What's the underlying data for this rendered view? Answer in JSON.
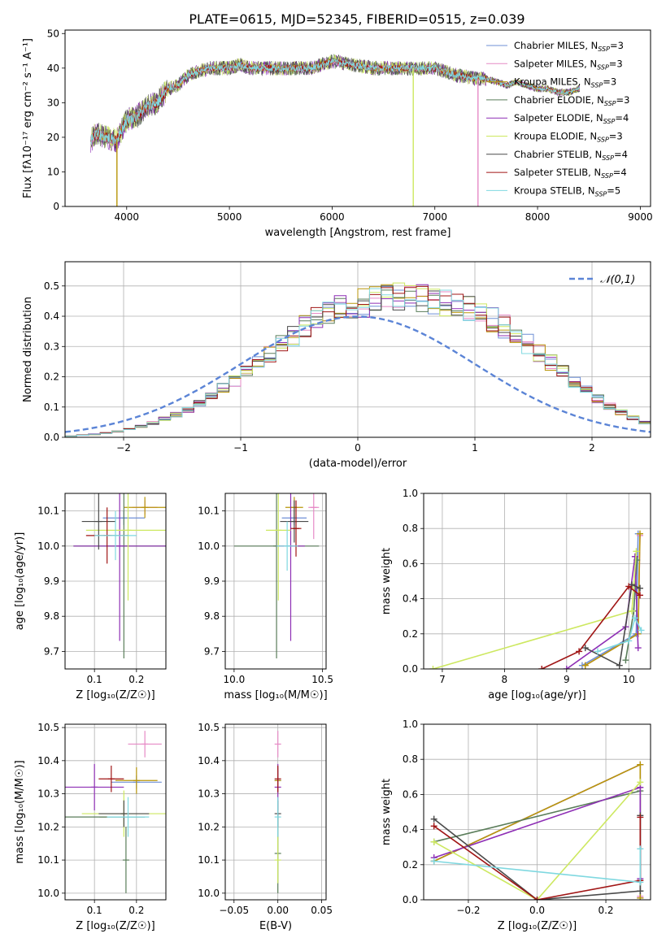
{
  "figure": {
    "title": "PLATE=0615, MJD=52345, FIBERID=0515, z=0.039"
  },
  "chart_data": [
    {
      "id": "spectrum",
      "type": "line",
      "xlabel": "wavelength [Angstrom, rest frame]",
      "ylabel": "Flux [fλ10⁻¹⁷ erg cm⁻² s⁻¹ A⁻¹]",
      "xlim": [
        3400,
        9100
      ],
      "ylim": [
        0,
        51
      ],
      "xticks": [
        4000,
        5000,
        6000,
        7000,
        8000,
        9000
      ],
      "yticks": [
        0,
        10,
        20,
        30,
        40,
        50
      ],
      "grid": false,
      "legend_position": "top-right",
      "continuum": {
        "x": [
          3650,
          3700,
          3800,
          3900,
          4000,
          4100,
          4200,
          4300,
          4400,
          4500,
          4600,
          4700,
          4800,
          4900,
          5000,
          5100,
          5200,
          5400,
          5600,
          5800,
          6000,
          6200,
          6400,
          6600,
          6800,
          7000,
          7200,
          7400,
          7500,
          7600,
          7700,
          7800,
          7900,
          8000,
          8100,
          8200,
          8300,
          8400
        ],
        "y": [
          19,
          21,
          20,
          19,
          25,
          26,
          29,
          30,
          34,
          35,
          38,
          39,
          40,
          40,
          40,
          41,
          40,
          40,
          40,
          40,
          42,
          41,
          40,
          40,
          40,
          40,
          38,
          37,
          37,
          36,
          35,
          36,
          35,
          34,
          34,
          33,
          33,
          34
        ]
      },
      "dips": [
        {
          "x": 3905,
          "y": 0
        },
        {
          "x": 6790,
          "y": 0
        },
        {
          "x": 7420,
          "y": 0
        }
      ],
      "series": [
        {
          "name": "Chabrier MILES, N_SSP=3",
          "color": "#6f8fd6"
        },
        {
          "name": "Salpeter MILES, N_SSP=3",
          "color": "#e68ac6"
        },
        {
          "name": "Kroupa MILES, N_SSP=3",
          "color": "#b8960a"
        },
        {
          "name": "Chabrier ELODIE, N_SSP=3",
          "color": "#5a7d5a"
        },
        {
          "name": "Salpeter ELODIE, N_SSP=4",
          "color": "#8e2fb5"
        },
        {
          "name": "Kroupa ELODIE, N_SSP=3",
          "color": "#cde860"
        },
        {
          "name": "Chabrier STELIB, N_SSP=4",
          "color": "#4a4a4a"
        },
        {
          "name": "Salpeter STELIB, N_SSP=4",
          "color": "#a01515"
        },
        {
          "name": "Kroupa STELIB, N_SSP=5",
          "color": "#7fd8e0"
        }
      ]
    },
    {
      "id": "residuals",
      "type": "step",
      "xlabel": "(data-model)/error",
      "ylabel": "Normed distribution",
      "xlim": [
        -2.5,
        2.5
      ],
      "ylim": [
        0,
        0.58
      ],
      "xticks": [
        -2,
        -1,
        0,
        1,
        2
      ],
      "yticks": [
        0.0,
        0.1,
        0.2,
        0.3,
        0.4,
        0.5
      ],
      "grid": true,
      "legend_position": "top-right",
      "reference": {
        "name": "𝒩(0,1)",
        "color": "#5b84d6",
        "mu": 0,
        "sigma": 1
      },
      "bin_edges_start": -2.5,
      "bin_width": 0.1,
      "histogram_envelope": [
        0.004,
        0.007,
        0.01,
        0.014,
        0.02,
        0.027,
        0.036,
        0.047,
        0.06,
        0.075,
        0.093,
        0.113,
        0.136,
        0.161,
        0.188,
        0.217,
        0.247,
        0.277,
        0.308,
        0.337,
        0.364,
        0.388,
        0.408,
        0.424,
        0.436,
        0.445,
        0.452,
        0.458,
        0.462,
        0.463,
        0.461,
        0.457,
        0.45,
        0.44,
        0.427,
        0.41,
        0.39,
        0.366,
        0.339,
        0.309,
        0.278,
        0.246,
        0.214,
        0.183,
        0.154,
        0.127,
        0.103,
        0.082,
        0.064,
        0.049
      ]
    },
    {
      "id": "age-vs-Z",
      "type": "errorbar",
      "xlabel": "Z [log₁₀(Z/Z☉)]",
      "ylabel": "age  [log₁₀(age/yr)]",
      "xlim": [
        0.03,
        0.27
      ],
      "ylim": [
        9.65,
        10.15
      ],
      "xticks": [
        0.1,
        0.2
      ],
      "yticks": [
        9.7,
        9.8,
        9.9,
        10.0,
        10.1
      ],
      "grid": true,
      "points": [
        {
          "x": 0.17,
          "y": 10.08,
          "xerr": 0.05,
          "yerr": 0.02,
          "c": 0
        },
        {
          "x": 0.22,
          "y": 10.11,
          "xerr": 0.03,
          "yerr": 0.02,
          "c": 1
        },
        {
          "x": 0.22,
          "y": 10.11,
          "xerr": 0.05,
          "yerr": 0.03,
          "c": 2
        },
        {
          "x": 0.17,
          "y": 10.0,
          "xerr": 0.12,
          "yerr": 0.32,
          "c": 3
        },
        {
          "x": 0.16,
          "y": 10.0,
          "xerr": 0.11,
          "yerr": 0.27,
          "c": 4
        },
        {
          "x": 0.18,
          "y": 10.045,
          "xerr": 0.1,
          "yerr": 0.2,
          "c": 5
        },
        {
          "x": 0.11,
          "y": 10.07,
          "xerr": 0.04,
          "yerr": 0.08,
          "c": 6
        },
        {
          "x": 0.13,
          "y": 10.03,
          "xerr": 0.05,
          "yerr": 0.08,
          "c": 7
        },
        {
          "x": 0.15,
          "y": 10.03,
          "xerr": 0.05,
          "yerr": 0.07,
          "c": 8
        }
      ]
    },
    {
      "id": "age-vs-mass",
      "type": "errorbar",
      "xlabel": "mass [log₁₀(M/M☉)]",
      "ylabel": "",
      "xlim": [
        9.95,
        10.52
      ],
      "ylim": [
        9.65,
        10.15
      ],
      "xticks": [
        10.0,
        10.5
      ],
      "yticks": [
        9.7,
        9.8,
        9.9,
        10.0,
        10.1
      ],
      "grid": true,
      "points": [
        {
          "x": 10.34,
          "y": 10.08,
          "xerr": 0.07,
          "yerr": 0.02,
          "c": 0
        },
        {
          "x": 10.45,
          "y": 10.11,
          "xerr": 0.03,
          "yerr": 0.09,
          "c": 1
        },
        {
          "x": 10.34,
          "y": 10.11,
          "xerr": 0.05,
          "yerr": 0.03,
          "c": 2
        },
        {
          "x": 10.24,
          "y": 10.0,
          "xerr": 0.24,
          "yerr": 0.32,
          "c": 3
        },
        {
          "x": 10.32,
          "y": 10.0,
          "xerr": 0.08,
          "yerr": 0.27,
          "c": 4
        },
        {
          "x": 10.25,
          "y": 10.045,
          "xerr": 0.07,
          "yerr": 0.2,
          "c": 5
        },
        {
          "x": 10.34,
          "y": 10.07,
          "xerr": 0.08,
          "yerr": 0.06,
          "c": 6
        },
        {
          "x": 10.35,
          "y": 10.05,
          "xerr": 0.03,
          "yerr": 0.08,
          "c": 7
        },
        {
          "x": 10.3,
          "y": 10.0,
          "xerr": 0.06,
          "yerr": 0.07,
          "c": 8
        }
      ]
    },
    {
      "id": "weight-vs-age",
      "type": "line",
      "xlabel": "age  [log₁₀(age/yr)]",
      "ylabel": "mass weight",
      "xlim": [
        6.7,
        10.35
      ],
      "ylim": [
        0,
        1
      ],
      "xticks": [
        7,
        8,
        9,
        10
      ],
      "yticks": [
        0.0,
        0.2,
        0.4,
        0.6,
        0.8,
        1.0
      ],
      "grid": true,
      "series": [
        {
          "c": 0,
          "x": [
            9.25,
            10.12,
            10.15
          ],
          "y": [
            0.02,
            0.2,
            0.77
          ]
        },
        {
          "c": 1,
          "x": [
            9.3,
            10.15,
            10.18
          ],
          "y": [
            0.02,
            0.2,
            0.76
          ]
        },
        {
          "c": 2,
          "x": [
            9.3,
            10.15,
            10.18
          ],
          "y": [
            0.02,
            0.2,
            0.77
          ]
        },
        {
          "c": 3,
          "x": [
            9.95,
            10.08,
            10.13
          ],
          "y": [
            0.05,
            0.33,
            0.62
          ]
        },
        {
          "c": 4,
          "x": [
            9.0,
            9.95,
            10.1,
            10.15
          ],
          "y": [
            0.0,
            0.24,
            0.64,
            0.12
          ]
        },
        {
          "c": 5,
          "x": [
            6.85,
            10.05,
            10.12
          ],
          "y": [
            0.0,
            0.33,
            0.67
          ]
        },
        {
          "c": 6,
          "x": [
            9.3,
            9.85,
            10.05,
            10.18
          ],
          "y": [
            0.12,
            0.02,
            0.48,
            0.46
          ]
        },
        {
          "c": 7,
          "x": [
            8.6,
            9.2,
            10.0,
            10.18
          ],
          "y": [
            0.0,
            0.1,
            0.47,
            0.42
          ]
        },
        {
          "c": 8,
          "x": [
            9.5,
            10.0,
            10.1,
            10.2
          ],
          "y": [
            0.1,
            0.16,
            0.29,
            0.22
          ]
        }
      ]
    },
    {
      "id": "mass-vs-Z",
      "type": "errorbar",
      "xlabel": "Z [log₁₀(Z/Z☉)]",
      "ylabel": "mass [log₁₀(M/M☉)]",
      "xlim": [
        0.03,
        0.27
      ],
      "ylim": [
        9.98,
        10.51
      ],
      "xticks": [
        0.1,
        0.2
      ],
      "yticks": [
        10.0,
        10.1,
        10.2,
        10.3,
        10.4,
        10.5
      ],
      "grid": true,
      "points": [
        {
          "x": 0.2,
          "y": 10.335,
          "xerr": 0.06,
          "yerr": 0.02,
          "c": 0
        },
        {
          "x": 0.22,
          "y": 10.45,
          "xerr": 0.04,
          "yerr": 0.04,
          "c": 1
        },
        {
          "x": 0.2,
          "y": 10.34,
          "xerr": 0.05,
          "yerr": 0.04,
          "c": 2
        },
        {
          "x": 0.12,
          "y": 10.23,
          "xerr": 0.1,
          "yerr": 0.0,
          "c": 3
        },
        {
          "x": 0.1,
          "y": 10.32,
          "xerr": 0.07,
          "yerr": 0.07,
          "c": 4
        },
        {
          "x": 0.17,
          "y": 10.24,
          "xerr": 0.1,
          "yerr": 0.07,
          "c": 5
        },
        {
          "x": 0.17,
          "y": 10.24,
          "xerr": 0.06,
          "yerr": 0.04,
          "c": 6
        },
        {
          "x": 0.14,
          "y": 10.345,
          "xerr": 0.03,
          "yerr": 0.04,
          "c": 7
        },
        {
          "x": 0.18,
          "y": 10.23,
          "xerr": 0.05,
          "yerr": 0.06,
          "c": 8
        },
        {
          "x": 0.175,
          "y": 10.1,
          "xerr": 0.0,
          "yerr": 0.1,
          "c": 3
        }
      ]
    },
    {
      "id": "mass-vs-ebv",
      "type": "errorbar",
      "xlabel": "E(B-V)",
      "ylabel": "",
      "xlim": [
        -0.06,
        0.055
      ],
      "ylim": [
        9.98,
        10.51
      ],
      "xticks": [
        -0.05,
        0.0,
        0.05
      ],
      "yticks": [
        10.0,
        10.1,
        10.2,
        10.3,
        10.4,
        10.5
      ],
      "grid": true,
      "points": [
        {
          "x": 0.0,
          "y": 10.34,
          "xerr": 0,
          "yerr": 0.03,
          "c": 0
        },
        {
          "x": 0.0,
          "y": 10.45,
          "xerr": 0,
          "yerr": 0.04,
          "c": 1
        },
        {
          "x": 0.0,
          "y": 10.34,
          "xerr": 0,
          "yerr": 0.04,
          "c": 2
        },
        {
          "x": 0.0,
          "y": 10.12,
          "xerr": 0,
          "yerr": 0.12,
          "c": 3
        },
        {
          "x": 0.0,
          "y": 10.32,
          "xerr": 0,
          "yerr": 0.07,
          "c": 4
        },
        {
          "x": 0.0,
          "y": 10.1,
          "xerr": 0,
          "yerr": 0.07,
          "c": 5
        },
        {
          "x": 0.0,
          "y": 10.24,
          "xerr": 0,
          "yerr": 0.04,
          "c": 6
        },
        {
          "x": 0.0,
          "y": 10.345,
          "xerr": 0,
          "yerr": 0.04,
          "c": 7
        },
        {
          "x": 0.0,
          "y": 10.23,
          "xerr": 0,
          "yerr": 0.06,
          "c": 8
        }
      ]
    },
    {
      "id": "weight-vs-Z",
      "type": "line",
      "xlabel": "Z [log₁₀(Z/Z☉)]",
      "ylabel": "mass weight",
      "xlim": [
        -0.33,
        0.33
      ],
      "ylim": [
        0,
        1
      ],
      "xticks": [
        -0.2,
        0.0,
        0.2
      ],
      "yticks": [
        0.0,
        0.2,
        0.4,
        0.6,
        0.8,
        1.0
      ],
      "grid": true,
      "series": [
        {
          "c": 0,
          "x": [
            -0.3,
            0.3,
            0.3
          ],
          "y": [
            0.22,
            0.77,
            0.01
          ]
        },
        {
          "c": 1,
          "x": [
            -0.3,
            0.3,
            0.3
          ],
          "y": [
            0.22,
            0.77,
            0.02
          ]
        },
        {
          "c": 2,
          "x": [
            -0.3,
            0.3,
            0.3
          ],
          "y": [
            0.22,
            0.77,
            0.01
          ]
        },
        {
          "c": 3,
          "x": [
            -0.3,
            0.3,
            0.3
          ],
          "y": [
            0.33,
            0.62,
            0.05
          ]
        },
        {
          "c": 4,
          "x": [
            -0.3,
            0.3,
            0.3
          ],
          "y": [
            0.24,
            0.64,
            0.12
          ]
        },
        {
          "c": 5,
          "x": [
            -0.3,
            0.0,
            0.3
          ],
          "y": [
            0.33,
            0.0,
            0.67
          ]
        },
        {
          "c": 6,
          "x": [
            -0.3,
            0.0,
            0.3,
            0.3
          ],
          "y": [
            0.46,
            0.0,
            0.05,
            0.48
          ]
        },
        {
          "c": 7,
          "x": [
            -0.3,
            0.0,
            0.3,
            0.3
          ],
          "y": [
            0.42,
            0.0,
            0.11,
            0.47
          ]
        },
        {
          "c": 8,
          "x": [
            -0.3,
            0.3,
            0.3
          ],
          "y": [
            0.22,
            0.1,
            0.29
          ]
        }
      ]
    }
  ]
}
